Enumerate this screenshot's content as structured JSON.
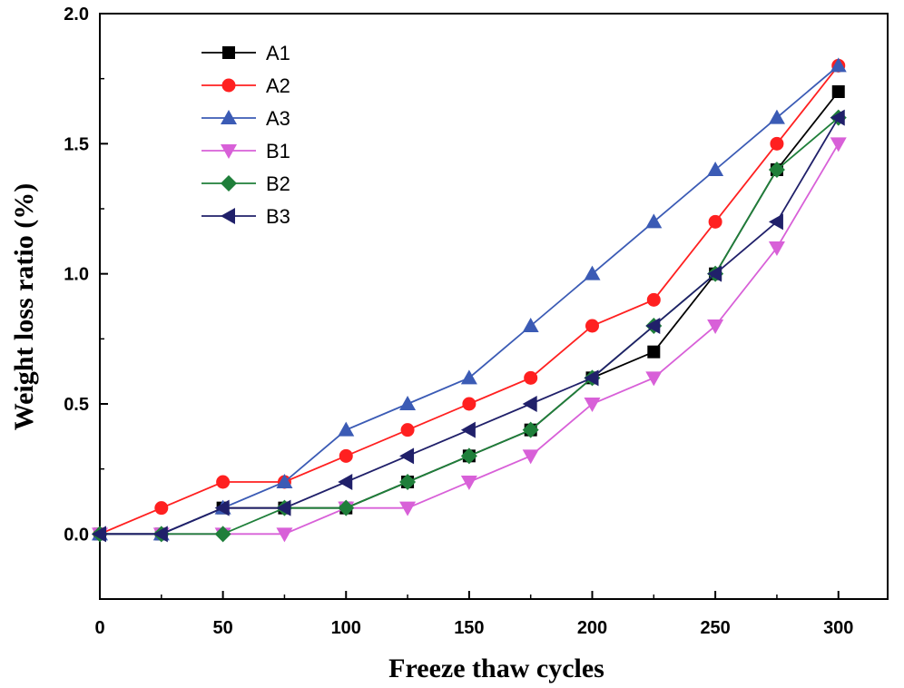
{
  "chart_data": {
    "type": "line",
    "title": "",
    "xlabel": "Freeze thaw cycles",
    "ylabel": "Weight loss ratio (%)",
    "xlim": [
      0,
      320
    ],
    "ylim": [
      -0.25,
      2.0
    ],
    "xticks": [
      0,
      50,
      100,
      150,
      200,
      250,
      300
    ],
    "yticks": [
      0.0,
      0.5,
      1.0,
      1.5,
      2.0
    ],
    "xtick_labels": [
      "0",
      "50",
      "100",
      "150",
      "200",
      "250",
      "300"
    ],
    "ytick_labels": [
      "0.0",
      "0.5",
      "1.0",
      "1.5",
      "2.0"
    ],
    "legend_position": "top-left",
    "grid": false,
    "x": [
      0,
      25,
      50,
      75,
      100,
      125,
      150,
      175,
      200,
      225,
      250,
      275,
      300
    ],
    "series": [
      {
        "name": "A1",
        "marker": "square",
        "color": "#000000",
        "values": [
          0,
          0,
          0.1,
          0.1,
          0.1,
          0.2,
          0.3,
          0.4,
          0.6,
          0.7,
          1.0,
          1.4,
          1.7
        ]
      },
      {
        "name": "A2",
        "marker": "circle",
        "color": "#ff2020",
        "values": [
          0,
          0.1,
          0.2,
          0.2,
          0.3,
          0.4,
          0.5,
          0.6,
          0.8,
          0.9,
          1.2,
          1.5,
          1.8
        ]
      },
      {
        "name": "A3",
        "marker": "triangle-up",
        "color": "#3b5bb5",
        "values": [
          0,
          0,
          0.1,
          0.2,
          0.4,
          0.5,
          0.6,
          0.8,
          1.0,
          1.2,
          1.4,
          1.6,
          1.8
        ]
      },
      {
        "name": "B1",
        "marker": "triangle-down",
        "color": "#d860d8",
        "values": [
          0,
          0,
          0,
          0,
          0.1,
          0.1,
          0.2,
          0.3,
          0.5,
          0.6,
          0.8,
          1.1,
          1.5
        ]
      },
      {
        "name": "B2",
        "marker": "diamond",
        "color": "#1f7f3a",
        "values": [
          0,
          0,
          0,
          0.1,
          0.1,
          0.2,
          0.3,
          0.4,
          0.6,
          0.8,
          1.0,
          1.4,
          1.6
        ]
      },
      {
        "name": "B3",
        "marker": "triangle-left",
        "color": "#20206a",
        "values": [
          0,
          0,
          0.1,
          0.1,
          0.2,
          0.3,
          0.4,
          0.5,
          0.6,
          0.8,
          1.0,
          1.2,
          1.6
        ]
      }
    ]
  }
}
